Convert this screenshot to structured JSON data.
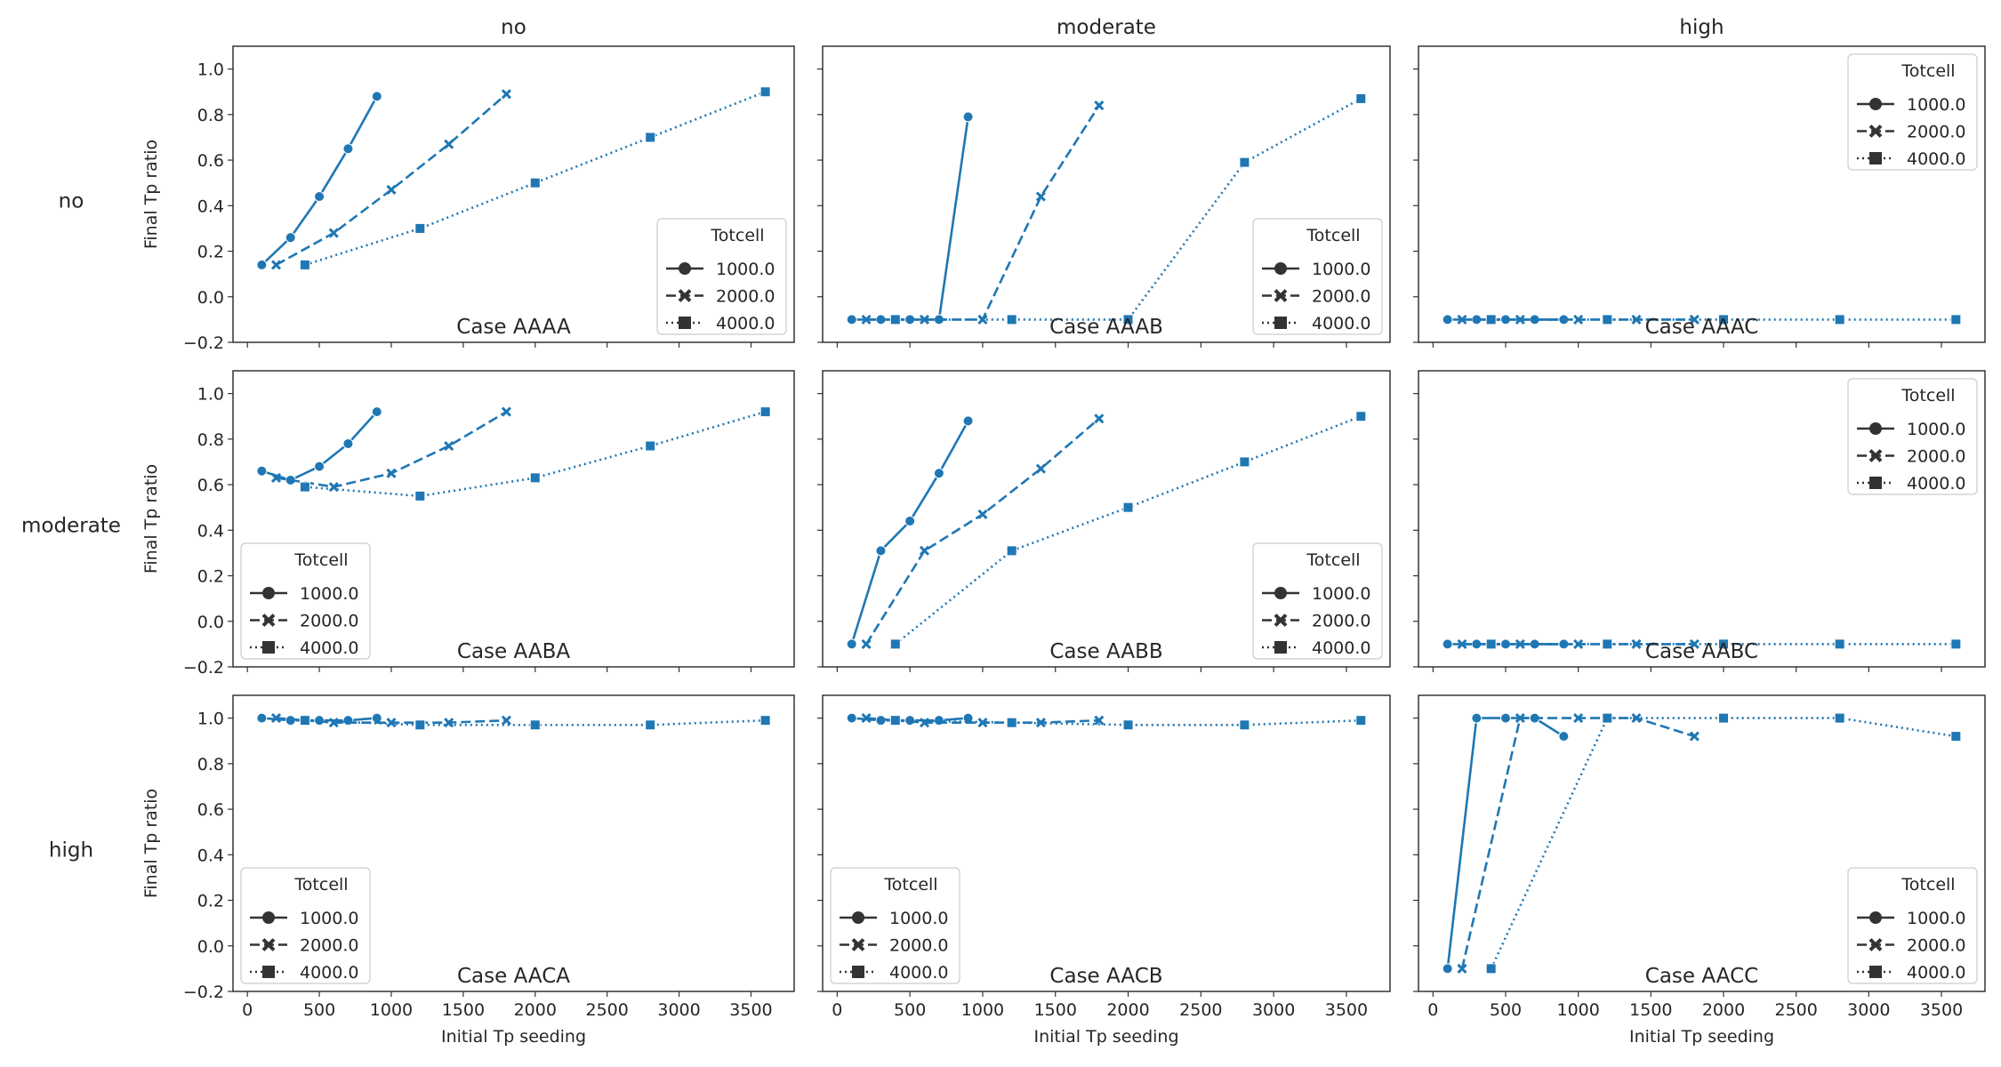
{
  "figure": {
    "col_titles": [
      "no",
      "moderate",
      "high"
    ],
    "row_titles": [
      "no",
      "moderate",
      "high"
    ],
    "ylabel": "Final Tp ratio",
    "xlabel": "Initial Tp seeding"
  },
  "chart_data": {
    "type": "line",
    "layout": "3x3 facet grid, shared axes",
    "xlim": [
      -100,
      3800
    ],
    "ylim": [
      -0.2,
      1.1
    ],
    "xticks": [
      0,
      500,
      1000,
      1500,
      2000,
      2500,
      3000,
      3500
    ],
    "yticks": [
      -0.2,
      0.0,
      0.2,
      0.4,
      0.6,
      0.8,
      1.0
    ],
    "xtick_labels": [
      "0",
      "500",
      "1000",
      "1500",
      "2000",
      "2500",
      "3000",
      "3500"
    ],
    "ytick_labels": [
      "−0.2",
      "0.0",
      "0.2",
      "0.4",
      "0.6",
      "0.8",
      "1.0"
    ],
    "color": "#1f77b4",
    "legend_title": "Totcell",
    "legend_labels": [
      "1000.0",
      "2000.0",
      "4000.0"
    ],
    "series_styles": [
      {
        "name": "1000.0",
        "dash": "solid",
        "marker": "circle"
      },
      {
        "name": "2000.0",
        "dash": "dashed",
        "marker": "x"
      },
      {
        "name": "4000.0",
        "dash": "dotted",
        "marker": "square"
      }
    ],
    "panels": [
      {
        "case": "Case AAAA",
        "legend": "bottom-right",
        "series": [
          {
            "name": "1000.0",
            "x": [
              100,
              300,
              500,
              700,
              900
            ],
            "y": [
              0.14,
              0.26,
              0.44,
              0.65,
              0.88
            ]
          },
          {
            "name": "2000.0",
            "x": [
              200,
              600,
              1000,
              1400,
              1800
            ],
            "y": [
              0.14,
              0.28,
              0.47,
              0.67,
              0.89
            ]
          },
          {
            "name": "4000.0",
            "x": [
              400,
              1200,
              2000,
              2800,
              3600
            ],
            "y": [
              0.14,
              0.3,
              0.5,
              0.7,
              0.9
            ]
          }
        ]
      },
      {
        "case": "Case AAAB",
        "legend": "bottom-right",
        "series": [
          {
            "name": "1000.0",
            "x": [
              100,
              300,
              500,
              700,
              900
            ],
            "y": [
              -0.1,
              -0.1,
              -0.1,
              -0.1,
              0.79
            ]
          },
          {
            "name": "2000.0",
            "x": [
              200,
              600,
              1000,
              1400,
              1800
            ],
            "y": [
              -0.1,
              -0.1,
              -0.1,
              0.44,
              0.84
            ]
          },
          {
            "name": "4000.0",
            "x": [
              400,
              1200,
              2000,
              2800,
              3600
            ],
            "y": [
              -0.1,
              -0.1,
              -0.1,
              0.59,
              0.87
            ]
          }
        ]
      },
      {
        "case": "Case AAAC",
        "legend": "top-right",
        "series": [
          {
            "name": "1000.0",
            "x": [
              100,
              300,
              500,
              700,
              900
            ],
            "y": [
              -0.1,
              -0.1,
              -0.1,
              -0.1,
              -0.1
            ]
          },
          {
            "name": "2000.0",
            "x": [
              200,
              600,
              1000,
              1400,
              1800
            ],
            "y": [
              -0.1,
              -0.1,
              -0.1,
              -0.1,
              -0.1
            ]
          },
          {
            "name": "4000.0",
            "x": [
              400,
              1200,
              2000,
              2800,
              3600
            ],
            "y": [
              -0.1,
              -0.1,
              -0.1,
              -0.1,
              -0.1
            ]
          }
        ]
      },
      {
        "case": "Case AABA",
        "legend": "bottom-left",
        "series": [
          {
            "name": "1000.0",
            "x": [
              100,
              300,
              500,
              700,
              900
            ],
            "y": [
              0.66,
              0.62,
              0.68,
              0.78,
              0.92
            ]
          },
          {
            "name": "2000.0",
            "x": [
              200,
              600,
              1000,
              1400,
              1800
            ],
            "y": [
              0.63,
              0.59,
              0.65,
              0.77,
              0.92
            ]
          },
          {
            "name": "4000.0",
            "x": [
              400,
              1200,
              2000,
              2800,
              3600
            ],
            "y": [
              0.59,
              0.55,
              0.63,
              0.77,
              0.92
            ]
          }
        ]
      },
      {
        "case": "Case AABB",
        "legend": "bottom-right",
        "series": [
          {
            "name": "1000.0",
            "x": [
              100,
              300,
              500,
              700,
              900
            ],
            "y": [
              -0.1,
              0.31,
              0.44,
              0.65,
              0.88
            ]
          },
          {
            "name": "2000.0",
            "x": [
              200,
              600,
              1000,
              1400,
              1800
            ],
            "y": [
              -0.1,
              0.31,
              0.47,
              0.67,
              0.89
            ]
          },
          {
            "name": "4000.0",
            "x": [
              400,
              1200,
              2000,
              2800,
              3600
            ],
            "y": [
              -0.1,
              0.31,
              0.5,
              0.7,
              0.9
            ]
          }
        ]
      },
      {
        "case": "Case AABC",
        "legend": "top-right",
        "series": [
          {
            "name": "1000.0",
            "x": [
              100,
              300,
              500,
              700,
              900
            ],
            "y": [
              -0.1,
              -0.1,
              -0.1,
              -0.1,
              -0.1
            ]
          },
          {
            "name": "2000.0",
            "x": [
              200,
              600,
              1000,
              1400,
              1800
            ],
            "y": [
              -0.1,
              -0.1,
              -0.1,
              -0.1,
              -0.1
            ]
          },
          {
            "name": "4000.0",
            "x": [
              400,
              1200,
              2000,
              2800,
              3600
            ],
            "y": [
              -0.1,
              -0.1,
              -0.1,
              -0.1,
              -0.1
            ]
          }
        ]
      },
      {
        "case": "Case AACA",
        "legend": "bottom-left",
        "series": [
          {
            "name": "1000.0",
            "x": [
              100,
              300,
              500,
              700,
              900
            ],
            "y": [
              1.0,
              0.99,
              0.99,
              0.99,
              1.0
            ]
          },
          {
            "name": "2000.0",
            "x": [
              200,
              600,
              1000,
              1400,
              1800
            ],
            "y": [
              1.0,
              0.98,
              0.98,
              0.98,
              0.99
            ]
          },
          {
            "name": "4000.0",
            "x": [
              400,
              1200,
              2000,
              2800,
              3600
            ],
            "y": [
              0.99,
              0.97,
              0.97,
              0.97,
              0.99
            ]
          }
        ]
      },
      {
        "case": "Case AACB",
        "legend": "bottom-left",
        "series": [
          {
            "name": "1000.0",
            "x": [
              100,
              300,
              500,
              700,
              900
            ],
            "y": [
              1.0,
              0.99,
              0.99,
              0.99,
              1.0
            ]
          },
          {
            "name": "2000.0",
            "x": [
              200,
              600,
              1000,
              1400,
              1800
            ],
            "y": [
              1.0,
              0.98,
              0.98,
              0.98,
              0.99
            ]
          },
          {
            "name": "4000.0",
            "x": [
              400,
              1200,
              2000,
              2800,
              3600
            ],
            "y": [
              0.99,
              0.98,
              0.97,
              0.97,
              0.99
            ]
          }
        ]
      },
      {
        "case": "Case AACC",
        "legend": "bottom-right",
        "series": [
          {
            "name": "1000.0",
            "x": [
              100,
              300,
              500,
              700,
              900
            ],
            "y": [
              -0.1,
              1.0,
              1.0,
              1.0,
              0.92
            ]
          },
          {
            "name": "2000.0",
            "x": [
              200,
              600,
              1000,
              1400,
              1800
            ],
            "y": [
              -0.1,
              1.0,
              1.0,
              1.0,
              0.92
            ]
          },
          {
            "name": "4000.0",
            "x": [
              400,
              1200,
              2000,
              2800,
              3600
            ],
            "y": [
              -0.1,
              1.0,
              1.0,
              1.0,
              0.92
            ]
          }
        ]
      }
    ]
  }
}
